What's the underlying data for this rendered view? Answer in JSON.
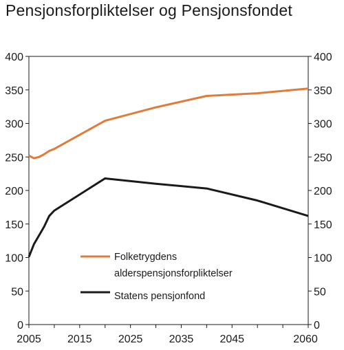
{
  "chart_data": {
    "type": "line",
    "title": "Pensjonsforpliktelser og Pensjonsfondet",
    "xlabel": "",
    "ylabel": "",
    "xlim": [
      2005,
      2060
    ],
    "ylim": [
      0,
      400
    ],
    "y_ticks": [
      0,
      50,
      100,
      150,
      200,
      250,
      300,
      350,
      400
    ],
    "x_tick_labels": [
      {
        "value": 2005,
        "label": "2005"
      },
      {
        "value": 2015,
        "label": "2015"
      },
      {
        "value": 2025,
        "label": "2025"
      },
      {
        "value": 2035,
        "label": "2035"
      },
      {
        "value": 2045,
        "label": "2045"
      },
      {
        "value": 2060,
        "label": "2060"
      }
    ],
    "x_minor_ticks": [
      2010,
      2020,
      2030,
      2040,
      2050,
      2055
    ],
    "grid": false,
    "dual_y_axis": true,
    "legend_position": "lower-center",
    "series": [
      {
        "name": "Folketrygdens alderspensjonsforpliktelser",
        "legend_lines": [
          "Folketrygdens",
          "alderspensjonsforpliktelser"
        ],
        "color": "#e07b39",
        "x": [
          2005,
          2006,
          2007,
          2008,
          2009,
          2010,
          2015,
          2020,
          2030,
          2040,
          2050,
          2060
        ],
        "values": [
          252,
          248,
          250,
          254,
          259,
          262,
          283,
          304,
          324,
          341,
          345,
          352
        ]
      },
      {
        "name": "Statens pensjonfond",
        "legend_lines": [
          "Statens pensjonfond"
        ],
        "color": "#1a1a1a",
        "x": [
          2005,
          2006,
          2007,
          2008,
          2009,
          2010,
          2015,
          2020,
          2030,
          2040,
          2050,
          2060
        ],
        "values": [
          101,
          120,
          133,
          146,
          162,
          170,
          194,
          218,
          210,
          203,
          185,
          162
        ]
      }
    ]
  }
}
